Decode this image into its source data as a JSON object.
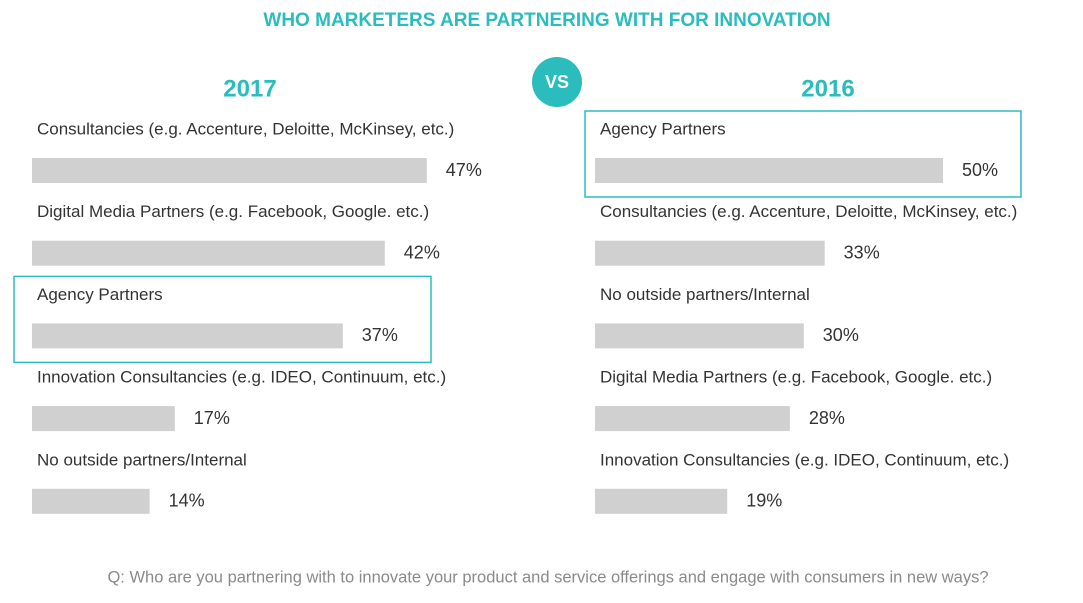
{
  "title": "WHO MARKETERS ARE PARTNERING WITH FOR INNOVATION",
  "badge": "VS",
  "footnote": "Q: Who are you partnering with to innovate your product and service offerings and engage with consumers in new ways?",
  "highlight_color": "#2bbdbd",
  "chart_data": [
    {
      "type": "bar",
      "orientation": "horizontal",
      "title": "2017",
      "categories": [
        "Consultancies (e.g. Accenture, Deloitte, McKinsey, etc.)",
        "Digital Media Partners (e.g. Facebook, Google. etc.)",
        "Agency Partners",
        "Innovation Consultancies (e.g. IDEO, Continuum, etc.)",
        "No outside partners/Internal"
      ],
      "values": [
        47,
        42,
        37,
        17,
        14
      ],
      "value_labels": [
        "47%",
        "42%",
        "37%",
        "17%",
        "14%"
      ],
      "color": "#d0d0d0",
      "highlight": 2
    },
    {
      "type": "bar",
      "orientation": "horizontal",
      "title": "2016",
      "categories": [
        "Agency Partners",
        "Consultancies (e.g. Accenture, Deloitte, McKinsey, etc.)",
        "No outside partners/Internal",
        "Digital Media Partners (e.g. Facebook, Google. etc.)",
        "Innovation Consultancies (e.g. IDEO, Continuum, etc.)"
      ],
      "values": [
        50,
        33,
        30,
        28,
        19
      ],
      "value_labels": [
        "50%",
        "33%",
        "30%",
        "28%",
        "19%"
      ],
      "color": "#d0d0d0",
      "highlight": 0
    }
  ]
}
